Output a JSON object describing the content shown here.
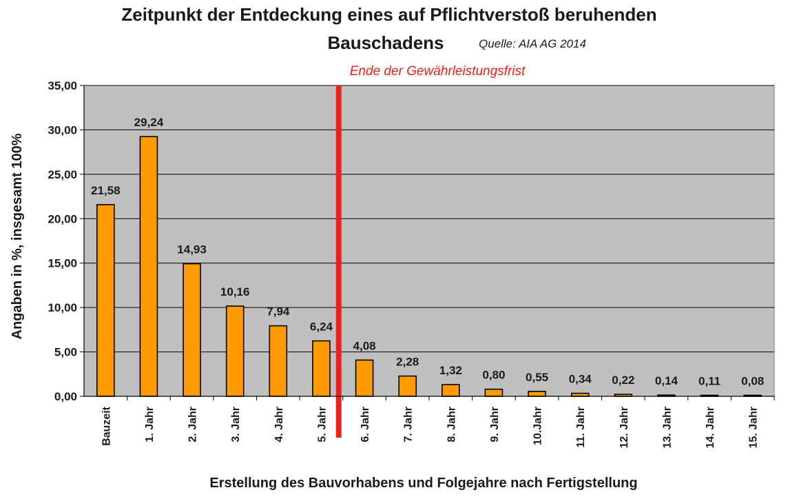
{
  "chart_data": {
    "type": "bar",
    "title": [
      "Zeitpunkt der Entdeckung eines auf Pflichtverstoß beruhenden",
      "Bauschadens"
    ],
    "source": "Quelle: AIA AG 2014",
    "xlabel": "Erstellung des Bauvorhabens und Folgejahre nach Fertigstellung",
    "ylabel": "Angaben in %, insgesamt 100%",
    "ylim": [
      0,
      35
    ],
    "yticks": [
      0,
      5,
      10,
      15,
      20,
      25,
      30,
      35
    ],
    "ytick_labels": [
      "0,00",
      "5,00",
      "10,00",
      "15,00",
      "20,00",
      "25,00",
      "30,00",
      "35,00"
    ],
    "grid": true,
    "categories": [
      "Bauzeit",
      "1. Jahr",
      "2. Jahr",
      "3. Jahr",
      "4. Jahr",
      "5. Jahr",
      "6. Jahr",
      "7. Jahr",
      "8. Jahr",
      "9. Jahr",
      "10.Jahr",
      "11. Jahr",
      "12. Jahr",
      "13. Jahr",
      "14. Jahr",
      "15. Jahr"
    ],
    "values": [
      21.58,
      29.24,
      14.93,
      10.16,
      7.94,
      6.24,
      4.08,
      2.28,
      1.32,
      0.8,
      0.55,
      0.34,
      0.22,
      0.14,
      0.11,
      0.08
    ],
    "value_labels": [
      "21,58",
      "29,24",
      "14,93",
      "10,16",
      "7,94",
      "6,24",
      "4,08",
      "2,28",
      "1,32",
      "0,80",
      "0,55",
      "0,34",
      "0,22",
      "0,14",
      "0,11",
      "0,08"
    ],
    "annotations": [
      {
        "text": "Ende der Gewährleistungsfrist",
        "between_categories": [
          "5. Jahr",
          "6. Jahr"
        ],
        "color": "#e8231f"
      }
    ],
    "colors": {
      "bar_fill": "#ff9a00",
      "bar_stroke": "#000000",
      "plot_background": "#c0c0c0",
      "gridline": "#000000",
      "marker_line": "#e8231f"
    }
  }
}
